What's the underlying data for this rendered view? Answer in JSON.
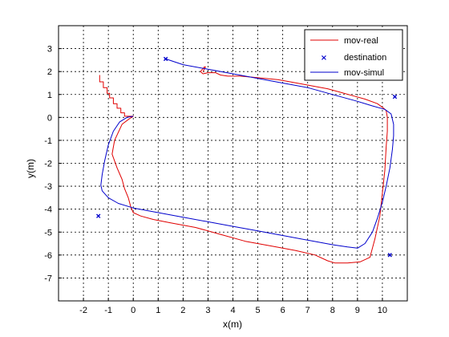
{
  "chart_data": {
    "type": "line",
    "title": "",
    "xlabel": "x(m)",
    "ylabel": "y(m)",
    "xlim": [
      -3,
      11
    ],
    "ylim": [
      -8,
      4
    ],
    "xticks": [
      "-2",
      "-1",
      "0",
      "1",
      "2",
      "3",
      "4",
      "5",
      "6",
      "7",
      "8",
      "9",
      "10"
    ],
    "yticks": [
      "3",
      "2",
      "1",
      "0",
      "-1",
      "-2",
      "-3",
      "-4",
      "-5",
      "-6",
      "-7"
    ],
    "grid": true,
    "legend_position": "top-right",
    "series": [
      {
        "name": "mov-real",
        "color": "#e00000",
        "style": "line",
        "x": [
          -1.35,
          -1.35,
          -1.2,
          -1.2,
          -1.05,
          -1.05,
          -0.95,
          -0.95,
          -0.8,
          -0.8,
          -0.65,
          -0.65,
          -0.5,
          -0.5,
          -0.35,
          -0.35,
          -0.15,
          -0.15,
          0.0,
          -0.15,
          -0.45,
          -0.75,
          -0.85,
          -0.65,
          -0.45,
          -0.35,
          -0.2,
          -0.1,
          0.0,
          0.3,
          0.8,
          1.5,
          2.5,
          3.5,
          4.5,
          5.5,
          6.5,
          7.3,
          7.8,
          8.1,
          8.6,
          9.1,
          9.5,
          9.7,
          9.9,
          10.0,
          10.1,
          10.15,
          10.2,
          10.2,
          10.15,
          10.05,
          10.05,
          9.8,
          9.3,
          8.8,
          8.3,
          7.8,
          7.3,
          6.8,
          6.3,
          5.8,
          5.3,
          4.8,
          4.3,
          3.8,
          3.5,
          3.3,
          3.0,
          2.8,
          2.7,
          2.85,
          2.9,
          2.8
        ],
        "y": [
          1.85,
          1.55,
          1.55,
          1.3,
          1.3,
          1.05,
          1.05,
          0.85,
          0.85,
          0.6,
          0.6,
          0.4,
          0.4,
          0.2,
          0.2,
          0.05,
          0.05,
          0.05,
          0.05,
          -0.05,
          -0.3,
          -1.0,
          -1.6,
          -2.2,
          -2.7,
          -3.1,
          -3.5,
          -3.9,
          -4.15,
          -4.3,
          -4.45,
          -4.6,
          -4.8,
          -5.1,
          -5.4,
          -5.6,
          -5.8,
          -6.0,
          -6.25,
          -6.35,
          -6.35,
          -6.3,
          -6.1,
          -5.3,
          -4.3,
          -3.3,
          -2.3,
          -1.3,
          -0.6,
          0.0,
          0.3,
          0.4,
          0.4,
          0.6,
          0.8,
          0.95,
          1.1,
          1.25,
          1.35,
          1.45,
          1.55,
          1.65,
          1.7,
          1.75,
          1.8,
          1.8,
          1.85,
          1.95,
          1.95,
          1.9,
          2.0,
          2.2,
          2.2,
          2.0
        ]
      },
      {
        "name": "destination",
        "color": "#0000cc",
        "style": "marker",
        "x": [
          1.3,
          10.5,
          10.3,
          -1.4
        ],
        "y": [
          2.55,
          0.9,
          -6.0,
          -4.3
        ]
      },
      {
        "name": "mov-simul",
        "color": "#0000cc",
        "style": "line",
        "x": [
          0.0,
          -0.25,
          -0.55,
          -0.8,
          -1.0,
          -1.15,
          -1.25,
          -1.3,
          -1.25,
          -1.0,
          -0.6,
          0.0,
          1.0,
          2.0,
          3.0,
          4.0,
          5.0,
          6.0,
          7.0,
          8.0,
          8.6,
          9.0,
          9.3,
          9.6,
          9.8,
          10.0,
          10.15,
          10.3,
          10.4,
          10.45,
          10.45,
          10.35,
          10.1,
          9.6,
          9.0,
          8.0,
          7.0,
          6.0,
          5.0,
          4.0,
          3.0,
          2.0,
          1.3
        ],
        "y": [
          0.05,
          0.0,
          -0.2,
          -0.6,
          -1.2,
          -1.9,
          -2.5,
          -2.95,
          -3.2,
          -3.5,
          -3.75,
          -3.95,
          -4.15,
          -4.35,
          -4.55,
          -4.75,
          -4.95,
          -5.15,
          -5.35,
          -5.55,
          -5.65,
          -5.7,
          -5.5,
          -5.0,
          -4.4,
          -3.7,
          -3.0,
          -2.2,
          -1.4,
          -0.8,
          -0.3,
          0.15,
          0.35,
          0.5,
          0.7,
          1.0,
          1.3,
          1.5,
          1.7,
          1.9,
          2.1,
          2.3,
          2.55
        ]
      }
    ]
  }
}
